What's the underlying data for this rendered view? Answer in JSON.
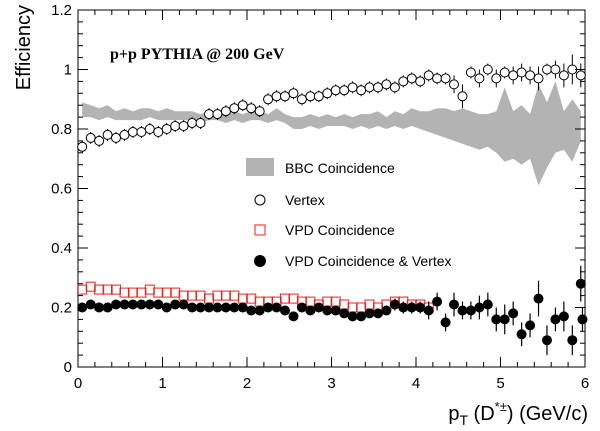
{
  "chart_data": {
    "type": "scatter",
    "annotation": "p+p PYTHIA @ 200 GeV",
    "ylabel": "Efficiency",
    "xlabel": {
      "main": "p",
      "sub": "T",
      "paren_open": " (D",
      "sup": "*±",
      "rest": ") (GeV/c)"
    },
    "xlim": [
      0,
      6
    ],
    "ylim": [
      0,
      1.2
    ],
    "xticks": [
      "0",
      "1",
      "2",
      "3",
      "4",
      "5",
      "6"
    ],
    "yticks": [
      "0",
      "0.2",
      "0.4",
      "0.6",
      "0.8",
      "1",
      "1.2"
    ],
    "legend_position": "center",
    "legend": [
      {
        "label": "BBC Coincidence",
        "marker": "band"
      },
      {
        "label": "Vertex",
        "marker": "open-circle"
      },
      {
        "label": "VPD Coincidence",
        "marker": "open-square"
      },
      {
        "label": "VPD Coincidence & Vertex",
        "marker": "filled-circle"
      }
    ],
    "bbc_band": {
      "name": "BBC Coincidence",
      "color": "#b3b3b3",
      "x": [
        0.05,
        0.15,
        0.25,
        0.35,
        0.45,
        0.55,
        0.65,
        0.75,
        0.85,
        0.95,
        1.05,
        1.15,
        1.25,
        1.35,
        1.45,
        1.55,
        1.65,
        1.75,
        1.85,
        1.95,
        2.05,
        2.15,
        2.25,
        2.35,
        2.45,
        2.55,
        2.65,
        2.75,
        2.85,
        2.95,
        3.05,
        3.15,
        3.25,
        3.35,
        3.45,
        3.55,
        3.65,
        3.75,
        3.85,
        3.95,
        4.05,
        4.15,
        4.25,
        4.35,
        4.45,
        4.55,
        4.65,
        4.75,
        4.85,
        4.95,
        5.05,
        5.15,
        5.25,
        5.35,
        5.45,
        5.55,
        5.65,
        5.75,
        5.85,
        5.95
      ],
      "upper": [
        0.89,
        0.88,
        0.87,
        0.88,
        0.86,
        0.87,
        0.86,
        0.87,
        0.87,
        0.86,
        0.87,
        0.86,
        0.86,
        0.86,
        0.85,
        0.86,
        0.86,
        0.85,
        0.86,
        0.85,
        0.86,
        0.86,
        0.85,
        0.87,
        0.85,
        0.84,
        0.84,
        0.85,
        0.84,
        0.85,
        0.84,
        0.85,
        0.84,
        0.85,
        0.85,
        0.86,
        0.84,
        0.86,
        0.85,
        0.87,
        0.86,
        0.86,
        0.87,
        0.87,
        0.86,
        0.87,
        0.86,
        0.85,
        0.85,
        0.86,
        0.94,
        0.86,
        0.88,
        0.85,
        0.95,
        0.89,
        0.96,
        0.86,
        0.9,
        0.86
      ],
      "lower": [
        0.84,
        0.84,
        0.83,
        0.84,
        0.83,
        0.83,
        0.83,
        0.83,
        0.84,
        0.83,
        0.83,
        0.83,
        0.83,
        0.83,
        0.82,
        0.83,
        0.83,
        0.82,
        0.83,
        0.82,
        0.83,
        0.83,
        0.82,
        0.83,
        0.82,
        0.8,
        0.8,
        0.81,
        0.8,
        0.81,
        0.81,
        0.81,
        0.8,
        0.81,
        0.8,
        0.81,
        0.8,
        0.81,
        0.8,
        0.81,
        0.8,
        0.79,
        0.78,
        0.77,
        0.76,
        0.75,
        0.74,
        0.73,
        0.74,
        0.72,
        0.69,
        0.7,
        0.68,
        0.7,
        0.61,
        0.67,
        0.72,
        0.73,
        0.69,
        0.76
      ]
    },
    "vertex": {
      "name": "Vertex",
      "x": [
        0.05,
        0.15,
        0.25,
        0.35,
        0.45,
        0.55,
        0.65,
        0.75,
        0.85,
        0.95,
        1.05,
        1.15,
        1.25,
        1.35,
        1.45,
        1.55,
        1.65,
        1.75,
        1.85,
        1.95,
        2.05,
        2.15,
        2.25,
        2.35,
        2.45,
        2.55,
        2.65,
        2.75,
        2.85,
        2.95,
        3.05,
        3.15,
        3.25,
        3.35,
        3.45,
        3.55,
        3.65,
        3.75,
        3.85,
        3.95,
        4.05,
        4.15,
        4.25,
        4.35,
        4.45,
        4.55,
        4.65,
        4.75,
        4.85,
        4.95,
        5.05,
        5.15,
        5.25,
        5.35,
        5.45,
        5.55,
        5.65,
        5.75,
        5.85,
        5.95
      ],
      "y": [
        0.74,
        0.77,
        0.76,
        0.78,
        0.77,
        0.78,
        0.79,
        0.79,
        0.8,
        0.79,
        0.8,
        0.81,
        0.81,
        0.82,
        0.82,
        0.85,
        0.85,
        0.86,
        0.87,
        0.88,
        0.87,
        0.86,
        0.9,
        0.91,
        0.91,
        0.92,
        0.9,
        0.91,
        0.91,
        0.92,
        0.93,
        0.93,
        0.94,
        0.93,
        0.94,
        0.94,
        0.95,
        0.94,
        0.96,
        0.97,
        0.96,
        0.98,
        0.97,
        0.97,
        0.95,
        0.91,
        0.99,
        0.97,
        1.0,
        0.97,
        0.99,
        0.98,
        0.99,
        0.98,
        0.97,
        1.0,
        1.0,
        0.98,
        1.0,
        0.98
      ],
      "err": [
        0.02,
        0.02,
        0.02,
        0.02,
        0.02,
        0.02,
        0.02,
        0.02,
        0.02,
        0.02,
        0.02,
        0.02,
        0.02,
        0.02,
        0.02,
        0.02,
        0.02,
        0.02,
        0.02,
        0.02,
        0.02,
        0.02,
        0.02,
        0.02,
        0.02,
        0.02,
        0.02,
        0.02,
        0.02,
        0.02,
        0.02,
        0.02,
        0.02,
        0.02,
        0.02,
        0.02,
        0.02,
        0.02,
        0.02,
        0.02,
        0.02,
        0.02,
        0.02,
        0.02,
        0.03,
        0.04,
        0.02,
        0.03,
        0.02,
        0.03,
        0.02,
        0.03,
        0.03,
        0.03,
        0.04,
        0.02,
        0.03,
        0.04,
        0.05,
        0.04
      ]
    },
    "vpd": {
      "name": "VPD Coincidence",
      "color": "#e8221f",
      "x": [
        0.05,
        0.15,
        0.25,
        0.35,
        0.45,
        0.55,
        0.65,
        0.75,
        0.85,
        0.95,
        1.05,
        1.15,
        1.25,
        1.35,
        1.45,
        1.55,
        1.65,
        1.75,
        1.85,
        1.95,
        2.05,
        2.15,
        2.25,
        2.35,
        2.45,
        2.55,
        2.65,
        2.75,
        2.85,
        2.95,
        3.05,
        3.15,
        3.25,
        3.35,
        3.45,
        3.55,
        3.65,
        3.75,
        3.85,
        3.95,
        4.05,
        4.15
      ],
      "y": [
        0.26,
        0.27,
        0.26,
        0.26,
        0.26,
        0.25,
        0.25,
        0.25,
        0.26,
        0.25,
        0.25,
        0.25,
        0.24,
        0.24,
        0.24,
        0.23,
        0.24,
        0.24,
        0.24,
        0.23,
        0.23,
        0.22,
        0.22,
        0.22,
        0.23,
        0.23,
        0.22,
        0.22,
        0.21,
        0.22,
        0.22,
        0.21,
        0.2,
        0.2,
        0.21,
        0.2,
        0.21,
        0.22,
        0.22,
        0.21,
        0.21,
        0.2
      ]
    },
    "vpd_vertex": {
      "name": "VPD Coincidence & Vertex",
      "x": [
        0.05,
        0.15,
        0.25,
        0.35,
        0.45,
        0.55,
        0.65,
        0.75,
        0.85,
        0.95,
        1.05,
        1.15,
        1.25,
        1.35,
        1.45,
        1.55,
        1.65,
        1.75,
        1.85,
        1.95,
        2.05,
        2.15,
        2.25,
        2.35,
        2.45,
        2.55,
        2.65,
        2.75,
        2.85,
        2.95,
        3.05,
        3.15,
        3.25,
        3.35,
        3.45,
        3.55,
        3.65,
        3.75,
        3.85,
        3.95,
        4.05,
        4.15,
        4.25,
        4.35,
        4.45,
        4.55,
        4.65,
        4.75,
        4.85,
        4.95,
        5.05,
        5.15,
        5.25,
        5.35,
        5.45,
        5.55,
        5.65,
        5.75,
        5.85,
        5.95
      ],
      "y": [
        0.2,
        0.21,
        0.2,
        0.2,
        0.21,
        0.21,
        0.21,
        0.21,
        0.21,
        0.21,
        0.2,
        0.21,
        0.21,
        0.2,
        0.2,
        0.2,
        0.2,
        0.2,
        0.2,
        0.2,
        0.19,
        0.19,
        0.2,
        0.2,
        0.19,
        0.17,
        0.2,
        0.19,
        0.2,
        0.19,
        0.19,
        0.18,
        0.17,
        0.17,
        0.18,
        0.18,
        0.19,
        0.21,
        0.2,
        0.2,
        0.2,
        0.19,
        0.22,
        0.15,
        0.21,
        0.19,
        0.19,
        0.2,
        0.21,
        0.16,
        0.16,
        0.18,
        0.11,
        0.14,
        0.23,
        0.09,
        0.16,
        0.17,
        0.09,
        0.28
      ],
      "err": [
        0.01,
        0.01,
        0.01,
        0.01,
        0.01,
        0.01,
        0.01,
        0.01,
        0.01,
        0.01,
        0.01,
        0.01,
        0.01,
        0.01,
        0.01,
        0.01,
        0.01,
        0.01,
        0.01,
        0.01,
        0.01,
        0.01,
        0.01,
        0.01,
        0.01,
        0.01,
        0.01,
        0.01,
        0.01,
        0.01,
        0.01,
        0.01,
        0.01,
        0.01,
        0.01,
        0.01,
        0.01,
        0.02,
        0.02,
        0.02,
        0.02,
        0.03,
        0.03,
        0.03,
        0.04,
        0.03,
        0.03,
        0.04,
        0.04,
        0.04,
        0.05,
        0.04,
        0.04,
        0.04,
        0.06,
        0.05,
        0.04,
        0.05,
        0.05,
        0.06
      ]
    },
    "vpd_vertex_last": {
      "x": 5.97,
      "y": 0.16,
      "err": 0.04
    }
  }
}
